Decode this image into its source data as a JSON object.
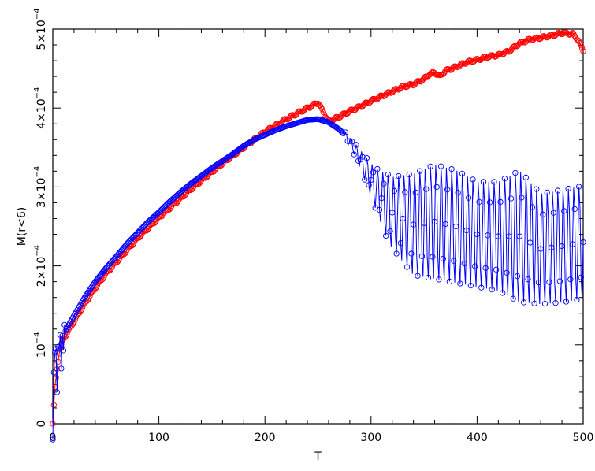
{
  "chart_data": {
    "type": "scatter",
    "title": "",
    "xlabel": "T",
    "ylabel": "M(r<6)",
    "xlim": [
      0,
      500
    ],
    "ylim": [
      0,
      0.0005
    ],
    "grid": false,
    "legend": "none",
    "x_ticks": [
      {
        "value": 0,
        "label": "0"
      },
      {
        "value": 100,
        "label": "100"
      },
      {
        "value": 200,
        "label": "200"
      },
      {
        "value": 300,
        "label": "300"
      },
      {
        "value": 400,
        "label": "400"
      },
      {
        "value": 500,
        "label": "500"
      }
    ],
    "y_ticks": [
      {
        "value": 0,
        "label": "0",
        "mantissa": "",
        "exponent": ""
      },
      {
        "value": 0.0001,
        "label": "",
        "mantissa": "10",
        "exponent": "−4"
      },
      {
        "value": 0.0002,
        "label": "",
        "mantissa": "2×10",
        "exponent": "−4"
      },
      {
        "value": 0.0003,
        "label": "",
        "mantissa": "3×10",
        "exponent": "−4"
      },
      {
        "value": 0.0004,
        "label": "",
        "mantissa": "4×10",
        "exponent": "−4"
      },
      {
        "value": 0.0005,
        "label": "",
        "mantissa": "5×10",
        "exponent": "−4"
      }
    ],
    "series": [
      {
        "color": "#ff0000",
        "marker": "open-circle",
        "points": [
          [
            0,
            0.0
          ],
          [
            2,
            4.5e-05
          ],
          [
            4,
            7e-05
          ],
          [
            6,
            9e-05
          ],
          [
            8,
            0.0001
          ],
          [
            10,
            0.000107
          ],
          [
            20,
            0.00013
          ],
          [
            30,
            0.000152
          ],
          [
            40,
            0.000172
          ],
          [
            50,
            0.00019
          ],
          [
            60,
            0.000205
          ],
          [
            70,
            0.00022
          ],
          [
            80,
            0.000235
          ],
          [
            90,
            0.000248
          ],
          [
            100,
            0.000261
          ],
          [
            110,
            0.000273
          ],
          [
            120,
            0.000285
          ],
          [
            130,
            0.000297
          ],
          [
            140,
            0.000308
          ],
          [
            150,
            0.000319
          ],
          [
            160,
            0.00033
          ],
          [
            170,
            0.00034
          ],
          [
            180,
            0.00035
          ],
          [
            190,
            0.00036
          ],
          [
            200,
            0.00037
          ],
          [
            210,
            0.000378
          ],
          [
            220,
            0.000386
          ],
          [
            230,
            0.000393
          ],
          [
            240,
            0.0004
          ],
          [
            250,
            0.000407
          ],
          [
            260,
            0.000383
          ],
          [
            270,
            0.000389
          ],
          [
            280,
            0.000396
          ],
          [
            290,
            0.000402
          ],
          [
            300,
            0.000409
          ],
          [
            310,
            0.000415
          ],
          [
            320,
            0.000421
          ],
          [
            330,
            0.000427
          ],
          [
            340,
            0.00043
          ],
          [
            350,
            0.000437
          ],
          [
            355,
            0.000443
          ],
          [
            360,
            0.000445
          ],
          [
            365,
            0.00044
          ],
          [
            370,
            0.000447
          ],
          [
            380,
            0.000452
          ],
          [
            390,
            0.000458
          ],
          [
            400,
            0.000461
          ],
          [
            410,
            0.000465
          ],
          [
            420,
            0.000467
          ],
          [
            430,
            0.000472
          ],
          [
            440,
            0.000482
          ],
          [
            450,
            0.000487
          ],
          [
            460,
            0.000489
          ],
          [
            470,
            0.000492
          ],
          [
            480,
            0.000495
          ],
          [
            490,
            0.000494
          ],
          [
            495,
            0.000487
          ],
          [
            498,
            0.000478
          ],
          [
            500,
            0.000473
          ]
        ]
      },
      {
        "color": "#0000ff",
        "marker": "open-circle",
        "points": [
          [
            0,
            0.0
          ],
          [
            2,
            0.00011
          ],
          [
            4,
            6e-05
          ],
          [
            6,
            0.000115
          ],
          [
            8,
            9e-05
          ],
          [
            10,
            0.000113
          ],
          [
            20,
            0.000137
          ],
          [
            30,
            0.00016
          ],
          [
            40,
            0.00018
          ],
          [
            50,
            0.000197
          ],
          [
            60,
            0.000212
          ],
          [
            70,
            0.000228
          ],
          [
            80,
            0.000242
          ],
          [
            90,
            0.000256
          ],
          [
            100,
            0.000268
          ],
          [
            110,
            0.000281
          ],
          [
            120,
            0.000293
          ],
          [
            130,
            0.000304
          ],
          [
            140,
            0.000314
          ],
          [
            150,
            0.000324
          ],
          [
            160,
            0.000333
          ],
          [
            170,
            0.000342
          ],
          [
            180,
            0.000352
          ],
          [
            190,
            0.00036
          ],
          [
            200,
            0.000366
          ],
          [
            210,
            0.000372
          ],
          [
            220,
            0.000377
          ],
          [
            230,
            0.000381
          ],
          [
            240,
            0.000385
          ],
          [
            250,
            0.000386
          ],
          [
            260,
            0.000382
          ],
          [
            270,
            0.000373
          ],
          [
            280,
            0.00036
          ],
          [
            290,
            0.000342
          ],
          [
            300,
            0.000324
          ],
          [
            310,
            0.0003
          ],
          [
            320,
            0.000277
          ],
          [
            330,
            0.000253
          ],
          [
            340,
            0.00023
          ],
          [
            350,
            0.000213
          ],
          [
            360,
            0.000198
          ],
          [
            370,
            0.000187
          ],
          [
            380,
            0.000178
          ],
          [
            390,
            0.000176
          ],
          [
            400,
            0.000172
          ],
          [
            410,
            0.000168
          ],
          [
            420,
            0.000163
          ],
          [
            430,
            0.000158
          ],
          [
            440,
            0.000153
          ],
          [
            450,
            0.00015
          ],
          [
            460,
            0.000148
          ],
          [
            470,
            0.000148
          ],
          [
            480,
            0.00015
          ],
          [
            490,
            0.000152
          ],
          [
            500,
            0.000155
          ]
        ]
      }
    ],
    "oscillation_envelope": {
      "color": "#0000ff",
      "x_range": [
        280,
        500
      ],
      "upper": [
        [
          280,
          0.00036
        ],
        [
          300,
          0.00033
        ],
        [
          320,
          0.000315
        ],
        [
          340,
          0.00032
        ],
        [
          360,
          0.000332
        ],
        [
          380,
          0.000325
        ],
        [
          400,
          0.00031
        ],
        [
          420,
          0.00031
        ],
        [
          440,
          0.000325
        ],
        [
          460,
          0.000295
        ],
        [
          480,
          0.0003
        ],
        [
          500,
          0.000305
        ]
      ],
      "lower": [
        [
          280,
          0.00033
        ],
        [
          300,
          0.00027
        ],
        [
          320,
          0.00022
        ],
        [
          340,
          0.000185
        ],
        [
          360,
          0.00018
        ],
        [
          380,
          0.000175
        ],
        [
          400,
          0.00017
        ],
        [
          420,
          0.000165
        ],
        [
          440,
          0.00015
        ],
        [
          460,
          0.000148
        ],
        [
          480,
          0.00015
        ],
        [
          500,
          0.000155
        ]
      ]
    }
  }
}
